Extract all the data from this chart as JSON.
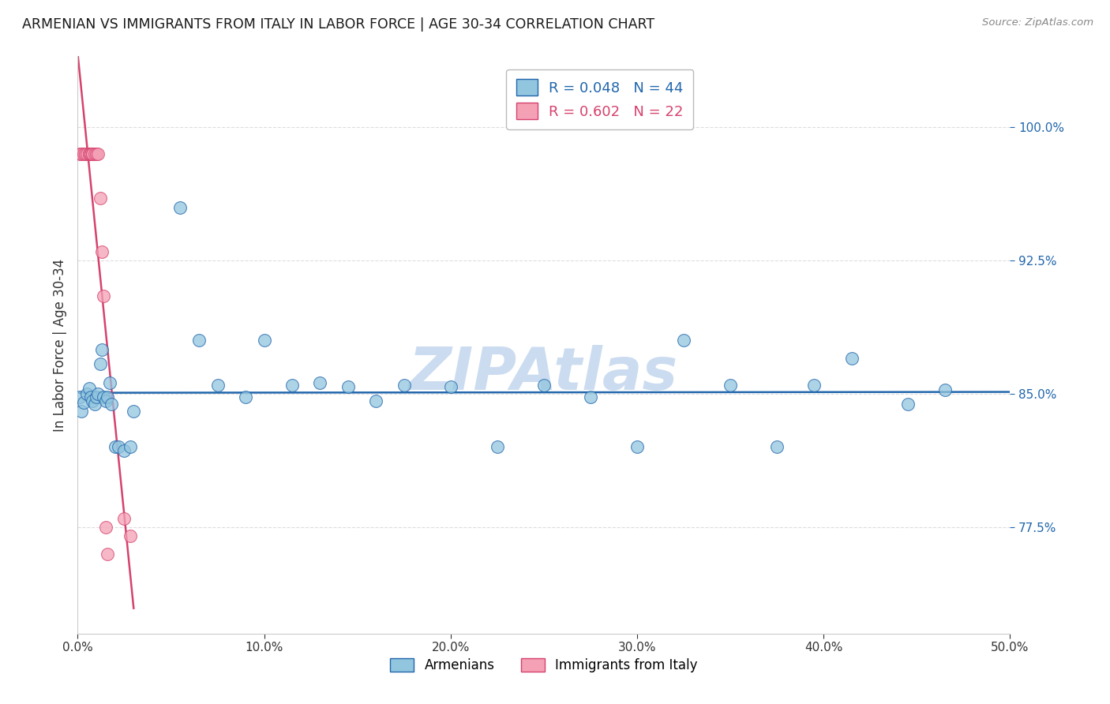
{
  "title": "ARMENIAN VS IMMIGRANTS FROM ITALY IN LABOR FORCE | AGE 30-34 CORRELATION CHART",
  "source": "Source: ZipAtlas.com",
  "ylabel": "In Labor Force | Age 30-34",
  "legend_label1": "Armenians",
  "legend_label2": "Immigrants from Italy",
  "R1": 0.048,
  "N1": 44,
  "R2": 0.602,
  "N2": 22,
  "color1": "#92c5de",
  "color2": "#f4a0b5",
  "line_color1": "#2166ac",
  "line_color2": "#d6426e",
  "xmin": 0.0,
  "xmax": 0.5,
  "ymin": 0.715,
  "ymax": 1.04,
  "yticks": [
    0.775,
    0.85,
    0.925,
    1.0
  ],
  "ytick_labels": [
    "77.5%",
    "85.0%",
    "92.5%",
    "100.0%"
  ],
  "xticks": [
    0.0,
    0.1,
    0.2,
    0.3,
    0.4,
    0.5
  ],
  "xtick_labels": [
    "0.0%",
    "10.0%",
    "20.0%",
    "30.0%",
    "40.0%",
    "50.0%"
  ],
  "blue_x": [
    0.001,
    0.002,
    0.003,
    0.005,
    0.006,
    0.007,
    0.008,
    0.009,
    0.01,
    0.011,
    0.012,
    0.013,
    0.014,
    0.015,
    0.016,
    0.017,
    0.018,
    0.02,
    0.022,
    0.025,
    0.028,
    0.03,
    0.055,
    0.065,
    0.075,
    0.09,
    0.1,
    0.115,
    0.13,
    0.145,
    0.16,
    0.175,
    0.2,
    0.225,
    0.25,
    0.275,
    0.3,
    0.325,
    0.35,
    0.375,
    0.395,
    0.415,
    0.445,
    0.465
  ],
  "blue_y": [
    0.848,
    0.84,
    0.845,
    0.85,
    0.853,
    0.848,
    0.846,
    0.844,
    0.848,
    0.85,
    0.867,
    0.875,
    0.848,
    0.846,
    0.848,
    0.856,
    0.844,
    0.82,
    0.82,
    0.818,
    0.82,
    0.84,
    0.955,
    0.88,
    0.855,
    0.848,
    0.88,
    0.855,
    0.856,
    0.854,
    0.846,
    0.855,
    0.854,
    0.82,
    0.855,
    0.848,
    0.82,
    0.88,
    0.855,
    0.82,
    0.855,
    0.87,
    0.844,
    0.852
  ],
  "pink_x": [
    0.001,
    0.002,
    0.003,
    0.004,
    0.005,
    0.006,
    0.006,
    0.007,
    0.007,
    0.007,
    0.008,
    0.008,
    0.009,
    0.01,
    0.011,
    0.012,
    0.013,
    0.014,
    0.015,
    0.016,
    0.025,
    0.028
  ],
  "pink_y": [
    0.985,
    0.985,
    0.985,
    0.985,
    0.985,
    0.985,
    0.985,
    0.985,
    0.985,
    0.985,
    0.985,
    0.985,
    0.985,
    0.985,
    0.985,
    0.96,
    0.93,
    0.905,
    0.775,
    0.76,
    0.78,
    0.77
  ],
  "watermark": "ZIPAtlas",
  "watermark_color": "#ccdcf0",
  "background_color": "#ffffff",
  "grid_color": "#dddddd",
  "pink_trend_xmax": 0.03,
  "blue_trend_xmax": 0.5
}
